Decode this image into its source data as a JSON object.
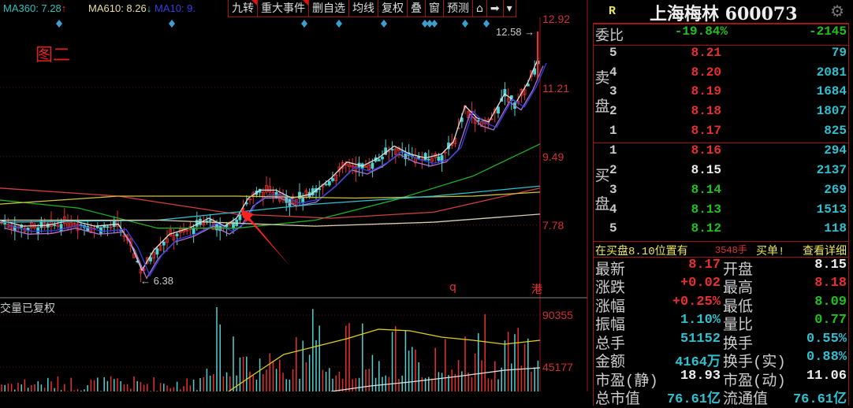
{
  "toolbar": {
    "ma": [
      {
        "label": "MA360: 7.28",
        "arrow": "↑",
        "color": "#30c0c0"
      },
      {
        "label": "MA610: 8.26",
        "arrow": "↓",
        "color": "#e8e0a0"
      },
      {
        "label": "MA10: 9.",
        "color": "#3040e0"
      }
    ],
    "buttons": [
      "九转",
      "重大事件",
      "删自选",
      "均线",
      "复权",
      "叠",
      "窗",
      "预测"
    ],
    "lock_icon": "lock-icon",
    "next_icon": "jump-end-icon",
    "dropdown_icon": "chevron-down-icon"
  },
  "chart": {
    "annotation": "图二",
    "price_axis": [
      "12.92",
      "11.21",
      "9.49",
      "7.78"
    ],
    "high_label": "12.58",
    "low_label": "6.38",
    "markers": [
      "q",
      "港"
    ],
    "volume_title": "交量已复权",
    "volume_axis": [
      "90355",
      "45177"
    ],
    "colors": {
      "up": "#e83030",
      "down": "#50d0d0",
      "arrow": "#ff2020"
    }
  },
  "panel": {
    "r_badge": "R",
    "title": "上海梅林 600073",
    "settings_icon": "gear-icon",
    "weibi": {
      "label": "委比",
      "pct": "-19.84%",
      "diff": "-2145"
    },
    "sell_label": "卖盘",
    "buy_label": "买盘",
    "sell": [
      {
        "lvl": "5",
        "price": "8.21",
        "vol": "79"
      },
      {
        "lvl": "4",
        "price": "8.20",
        "vol": "2081"
      },
      {
        "lvl": "3",
        "price": "8.19",
        "vol": "1684"
      },
      {
        "lvl": "2",
        "price": "8.18",
        "vol": "1807"
      },
      {
        "lvl": "1",
        "price": "8.17",
        "vol": "825"
      }
    ],
    "buy": [
      {
        "lvl": "1",
        "price": "8.16",
        "vol": "294",
        "c": "red"
      },
      {
        "lvl": "2",
        "price": "8.15",
        "vol": "2137",
        "c": "white"
      },
      {
        "lvl": "3",
        "price": "8.14",
        "vol": "269",
        "c": "green"
      },
      {
        "lvl": "4",
        "price": "8.13",
        "vol": "1513",
        "c": "green"
      },
      {
        "lvl": "5",
        "price": "8.12",
        "vol": "118",
        "c": "green"
      }
    ],
    "notice": {
      "text": "在买盘8.10位置有",
      "qty": "3548手",
      "tail": "买单!",
      "link": "查看详细"
    },
    "stats": [
      {
        "l1": "最新",
        "v1": "8.17",
        "c1": "red",
        "l2": "开盘",
        "v2": "8.15",
        "c2": "white"
      },
      {
        "l1": "涨跌",
        "v1": "+0.02",
        "c1": "red",
        "l2": "最高",
        "v2": "8.18",
        "c2": "red"
      },
      {
        "l1": "涨幅",
        "v1": "+0.25%",
        "c1": "red",
        "l2": "最低",
        "v2": "8.09",
        "c2": "green"
      },
      {
        "l1": "振幅",
        "v1": "1.10%",
        "c1": "cyan",
        "l2": "量比",
        "v2": "0.77",
        "c2": "green"
      },
      {
        "l1": "总手",
        "v1": "51152",
        "c1": "cyan",
        "l2": "换手",
        "v2": "0.55%",
        "c2": "cyan"
      },
      {
        "l1": "金额",
        "v1": "4164万",
        "c1": "cyan",
        "l2": "换手(实)",
        "v2": "0.88%",
        "c2": "cyan"
      },
      {
        "l1": "市盈(静)",
        "v1": "18.93",
        "c1": "white",
        "l2": "市盈(动)",
        "v2": "11.06",
        "c2": "white"
      },
      {
        "l1": "总市值",
        "v1": "76.61亿",
        "c1": "cyan",
        "l2": "流通值",
        "v2": "76.61亿",
        "c2": "cyan"
      }
    ]
  }
}
